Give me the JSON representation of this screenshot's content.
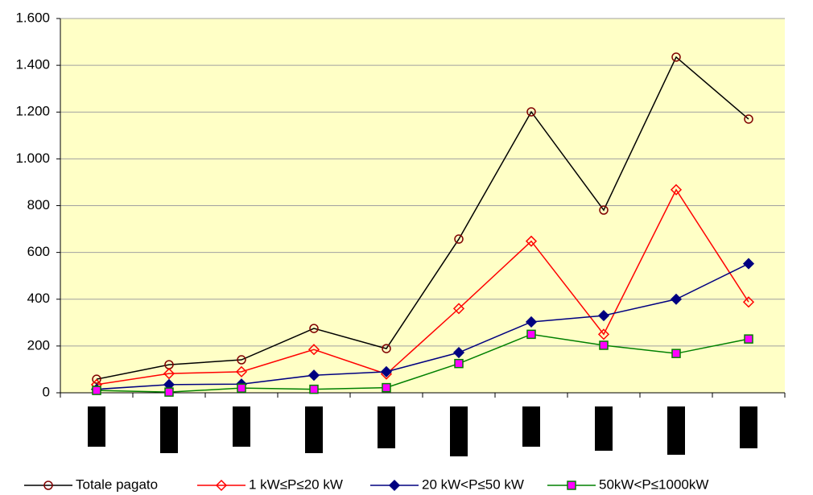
{
  "chart_data": {
    "type": "line",
    "categories": [
      null,
      null,
      null,
      null,
      null,
      null,
      null,
      null,
      null,
      null
    ],
    "series": [
      {
        "name": "Totale pagato",
        "color": "#000000",
        "marker": "circle",
        "marker_color": "#800000",
        "marker_fill": "none",
        "values": [
          58,
          120,
          141,
          275,
          189,
          657,
          1201,
          781,
          1435,
          1170
        ]
      },
      {
        "name": "1 kW≤P≤20 kW",
        "color": "#ff0000",
        "marker": "diamond",
        "marker_color": "#ff0000",
        "marker_fill": "none",
        "values": [
          35,
          82,
          90,
          185,
          80,
          360,
          648,
          250,
          868,
          388
        ]
      },
      {
        "name": "20 kW<P≤50 kW",
        "color": "#000080",
        "marker": "diamond",
        "marker_color": "#000080",
        "marker_fill": "#000080",
        "values": [
          15,
          35,
          37,
          75,
          90,
          172,
          303,
          330,
          400,
          552
        ]
      },
      {
        "name": "50kW<P≤1000kW",
        "color": "#008000",
        "marker": "square",
        "marker_color": "#008000",
        "marker_fill": "#ff00ff",
        "values": [
          10,
          3,
          20,
          15,
          22,
          125,
          250,
          203,
          168,
          230
        ]
      }
    ],
    "ylim": [
      0,
      1600
    ],
    "yticks": [
      0,
      200,
      400,
      600,
      800,
      {
        "value": 1000,
        "label": "1.000"
      },
      {
        "value": 1200,
        "label": "1.200"
      },
      {
        "value": 1400,
        "label": "1.400"
      },
      {
        "value": 1600,
        "label": "1.600"
      }
    ],
    "grid": true,
    "plot_background": "#ffffc6",
    "legend": "bottom"
  }
}
